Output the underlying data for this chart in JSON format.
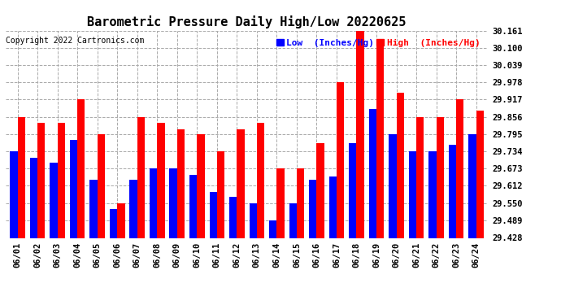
{
  "title": "Barometric Pressure Daily High/Low 20220625",
  "copyright": "Copyright 2022 Cartronics.com",
  "legend_low": "Low  (Inches/Hg)",
  "legend_high": "High  (Inches/Hg)",
  "dates": [
    "06/01",
    "06/02",
    "06/03",
    "06/04",
    "06/05",
    "06/06",
    "06/07",
    "06/08",
    "06/09",
    "06/10",
    "06/11",
    "06/12",
    "06/13",
    "06/14",
    "06/15",
    "06/16",
    "06/17",
    "06/18",
    "06/19",
    "06/20",
    "06/21",
    "06/22",
    "06/23",
    "06/24"
  ],
  "high_values": [
    29.856,
    29.834,
    29.834,
    29.917,
    29.795,
    29.551,
    29.856,
    29.834,
    29.812,
    29.795,
    29.734,
    29.812,
    29.834,
    29.673,
    29.673,
    29.762,
    29.978,
    30.161,
    30.122,
    29.94,
    29.856,
    29.856,
    29.917,
    29.878
  ],
  "low_values": [
    29.734,
    29.712,
    29.695,
    29.773,
    29.634,
    29.53,
    29.634,
    29.673,
    29.673,
    29.651,
    29.59,
    29.573,
    29.551,
    29.489,
    29.551,
    29.634,
    29.645,
    29.762,
    29.884,
    29.795,
    29.734,
    29.734,
    29.756,
    29.795
  ],
  "ylim_min": 29.428,
  "ylim_max": 30.161,
  "yticks": [
    29.428,
    29.489,
    29.55,
    29.612,
    29.673,
    29.734,
    29.795,
    29.856,
    29.917,
    29.978,
    30.039,
    30.1,
    30.161
  ],
  "bar_width": 0.38,
  "blue_color": "#0000FF",
  "red_color": "#FF0000",
  "bg_color": "#FFFFFF",
  "grid_color": "#AAAAAA",
  "title_fontsize": 11,
  "tick_fontsize": 7.5,
  "legend_fontsize": 8,
  "copyright_fontsize": 7
}
